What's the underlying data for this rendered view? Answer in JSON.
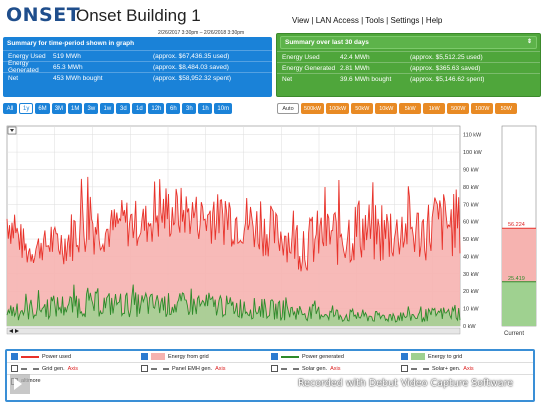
{
  "header": {
    "logo_text": "ONSET",
    "building_name": "Onset Building 1",
    "date_range": "2/26/2017 3:30pm – 2/26/2018 3:30pm",
    "menu": [
      "View",
      "LAN Access",
      "Tools",
      "Settings",
      "Help"
    ]
  },
  "summary_period": {
    "title": "Summary for time-period shown in graph",
    "rows": [
      {
        "label": "Energy Used",
        "value": "519 MWh",
        "note": "(approx. $67,436.35 used)"
      },
      {
        "label": "Energy Generated",
        "value": "65.3 MWh",
        "note": "(approx. $8,484.03 saved)"
      },
      {
        "label": "Net",
        "value": "453 MWh bought",
        "note": "(approx. $58,952.32 spent)"
      }
    ]
  },
  "summary_30": {
    "title": "Summary over last 30 days",
    "rows": [
      {
        "label": "Energy Used",
        "value": "42.4 MWh",
        "note": "(approx. $5,512.25 used)"
      },
      {
        "label": "Energy Generated",
        "value": "2.81 MWh",
        "note": "(approx. $365.63 saved)"
      },
      {
        "label": "Net",
        "value": "39.6 MWh bought",
        "note": "(approx. $5,146.62 spent)"
      }
    ]
  },
  "range_buttons": [
    "All",
    "1y",
    "6M",
    "3M",
    "1M",
    "3w",
    "1w",
    "3d",
    "1d",
    "12h",
    "6h",
    "3h",
    "1h",
    "10m"
  ],
  "range_active": "1y",
  "scale_buttons": [
    "Auto",
    "500kW",
    "100kW",
    "50kW",
    "10kW",
    "5kW",
    "1kW",
    "500W",
    "100W",
    "50W"
  ],
  "current_label": "Current",
  "current_values": {
    "power_used": "56.224",
    "power_generated": "25.419"
  },
  "legend": {
    "row1": [
      {
        "label": "Power used",
        "checked": true,
        "style": "line",
        "color": "#e8322a"
      },
      {
        "label": "Energy from grid",
        "checked": true,
        "style": "box",
        "color": "#f6b3b0"
      },
      {
        "label": "Power generated",
        "checked": true,
        "style": "line",
        "color": "#2e8a2a"
      },
      {
        "label": "Energy to grid",
        "checked": true,
        "style": "box",
        "color": "#9fd190"
      }
    ],
    "row2": [
      {
        "label": "Grid gen.",
        "axis": "Axis",
        "checked": false
      },
      {
        "label": "Panel EMH gen.",
        "axis": "Axis",
        "checked": false
      },
      {
        "label": "Solar gen.",
        "axis": "Axis",
        "checked": false
      },
      {
        "label": "Solar+ gen.",
        "axis": "Axis",
        "checked": false
      }
    ],
    "row3_label": "altimore"
  },
  "watermark": "Recorded with Debut Video Capture Software",
  "chart_data": {
    "type": "line",
    "x_range": [
      "2017-03-01",
      "2018-02-26"
    ],
    "x_tick_labels": [
      "Mar",
      "Apr",
      "May",
      "Jun",
      "Jul",
      "Aug",
      "Sep",
      "Oct",
      "Nov",
      "Dec",
      "Jan",
      "Feb"
    ],
    "year_marker": "2018",
    "y_tick_labels": [
      "0 kW",
      "10 kW",
      "20 kW",
      "30 kW",
      "40 kW",
      "50 kW",
      "60 kW",
      "70 kW",
      "80 kW",
      "90 kW",
      "100 kW",
      "110 kW"
    ],
    "ylim": [
      0,
      115
    ],
    "grid": true,
    "series": [
      {
        "name": "Power used",
        "color": "#e8322a",
        "fill": "#f6b3b0",
        "x": [
          "Mar",
          "Mar-mid",
          "Apr",
          "Apr-mid",
          "May",
          "May-mid",
          "Jun",
          "Jun-mid",
          "Jul",
          "Jul-mid",
          "Aug",
          "Aug-mid",
          "Sep",
          "Sep-mid",
          "Oct",
          "Oct-mid",
          "Nov",
          "Nov-mid",
          "Dec",
          "Dec-mid",
          "Jan",
          "Jan-mid",
          "Feb",
          "Feb-mid"
        ],
        "low": [
          48,
          33,
          38,
          35,
          40,
          42,
          44,
          46,
          48,
          50,
          48,
          46,
          44,
          40,
          38,
          30,
          35,
          33,
          36,
          34,
          38,
          36,
          40,
          38
        ],
        "high": [
          85,
          60,
          62,
          70,
          100,
          75,
          85,
          80,
          95,
          90,
          85,
          88,
          90,
          80,
          75,
          70,
          82,
          85,
          90,
          78,
          80,
          85,
          92,
          88
        ]
      },
      {
        "name": "Power generated",
        "color": "#2e8a2a",
        "fill": "#9fd190",
        "x": [
          "Mar",
          "Mar-mid",
          "Apr",
          "Apr-mid",
          "May",
          "May-mid",
          "Jun",
          "Jun-mid",
          "Jul",
          "Jul-mid",
          "Aug",
          "Aug-mid",
          "Sep",
          "Sep-mid",
          "Oct",
          "Oct-mid",
          "Nov",
          "Nov-mid",
          "Dec",
          "Dec-mid",
          "Jan",
          "Jan-mid",
          "Feb",
          "Feb-mid"
        ],
        "low": [
          3,
          3,
          4,
          4,
          5,
          5,
          5,
          5,
          5,
          5,
          5,
          5,
          4,
          4,
          3,
          3,
          3,
          2,
          2,
          2,
          2,
          2,
          3,
          3
        ],
        "high": [
          18,
          20,
          22,
          24,
          24,
          25,
          25,
          24,
          24,
          24,
          23,
          22,
          21,
          20,
          18,
          16,
          15,
          13,
          12,
          10,
          11,
          12,
          14,
          15
        ]
      }
    ]
  }
}
